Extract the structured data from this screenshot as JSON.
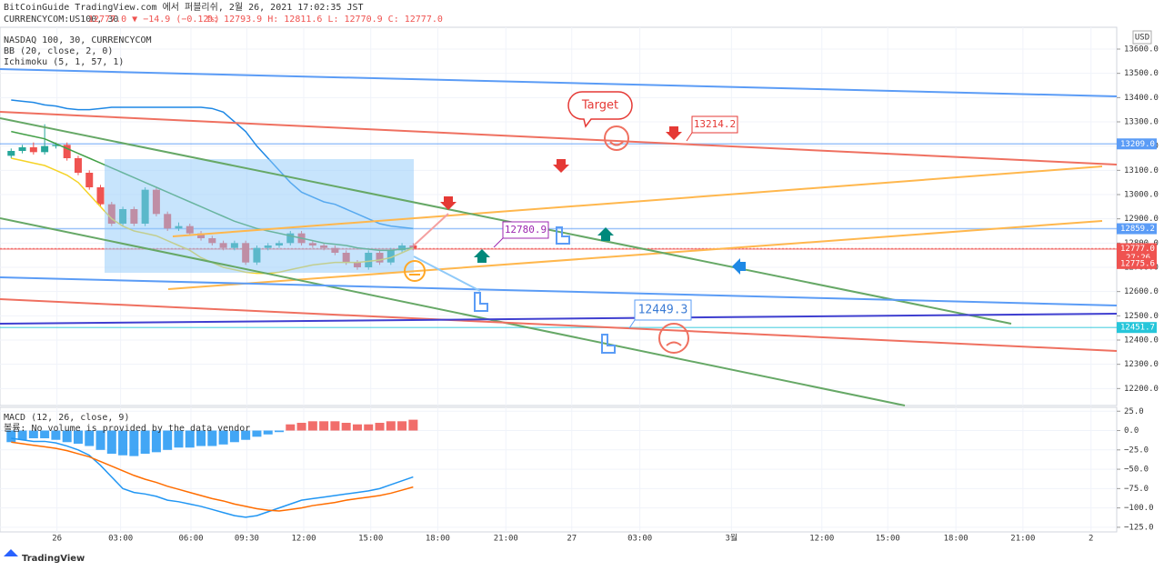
{
  "header": {
    "line1": "BitCoinGuide TradingView.com 에서 퍼블리쉬, 2월 26, 2021 17:02:35 JST",
    "symbol": "CURRENCYCOM:US100, 30",
    "change": "12777.0 ▼ −14.9 (−0.12%)",
    "ohlc": "D: 12793.9  H: 12811.6  L: 12770.9  C: 12777.0"
  },
  "footer": {
    "brand": "TradingView"
  },
  "chart_data": [
    {
      "type": "candlestick",
      "legend_lines": [
        "NASDAQ 100, 30, CURRENCYCOM",
        "BB (20, close, 2, 0)",
        "Ichimoku (5, 1, 57, 1)"
      ],
      "currency": "USD",
      "countdown": "27:26",
      "x": [
        0,
        1,
        2,
        3,
        4,
        5,
        6,
        7,
        8,
        9,
        10,
        11,
        12,
        13,
        14,
        15,
        16,
        17,
        18,
        19,
        20,
        21,
        22,
        23,
        24,
        25,
        26,
        27,
        28,
        29,
        30,
        31,
        32,
        33,
        34,
        35,
        36
      ],
      "open": [
        13160,
        13180,
        13195,
        13175,
        13200,
        13205,
        13150,
        13090,
        13030,
        12960,
        12880,
        12940,
        12880,
        13020,
        12920,
        12860,
        12870,
        12840,
        12820,
        12800,
        12780,
        12800,
        12720,
        12780,
        12790,
        12800,
        12840,
        12800,
        12790,
        12780,
        12760,
        12720,
        12700,
        12760,
        12720,
        12770,
        12790
      ],
      "close": [
        13180,
        13195,
        13175,
        13200,
        13205,
        13150,
        13090,
        13030,
        12960,
        12880,
        12940,
        12880,
        13020,
        12920,
        12860,
        12870,
        12840,
        12820,
        12800,
        12780,
        12800,
        12720,
        12780,
        12790,
        12800,
        12840,
        12800,
        12790,
        12780,
        12760,
        12720,
        12700,
        12760,
        12720,
        12770,
        12790,
        12777
      ],
      "high": [
        13190,
        13205,
        13215,
        13290,
        13215,
        13215,
        13160,
        13100,
        13040,
        12970,
        12950,
        12950,
        13030,
        13030,
        12930,
        12885,
        12880,
        12850,
        12830,
        12810,
        12810,
        12810,
        12790,
        12800,
        12810,
        12850,
        12850,
        12810,
        12800,
        12790,
        12770,
        12730,
        12770,
        12770,
        12780,
        12800,
        12800
      ],
      "low": [
        13150,
        13170,
        13165,
        13165,
        13190,
        13140,
        13080,
        13020,
        12950,
        12870,
        12870,
        12870,
        12870,
        12910,
        12850,
        12850,
        12830,
        12810,
        12790,
        12770,
        12770,
        12710,
        12710,
        12770,
        12780,
        12790,
        12790,
        12780,
        12770,
        12750,
        12710,
        12690,
        12690,
        12710,
        12710,
        12760,
        12770
      ],
      "up_color": "#26a69a",
      "down_color": "#ef5350",
      "series": [
        {
          "color": "#1e88e5",
          "values": [
            13390,
            13385,
            13380,
            13370,
            13365,
            13355,
            13350,
            13350,
            13355,
            13360,
            13360,
            13360,
            13360,
            13360,
            13360,
            13360,
            13360,
            13360,
            13355,
            13340,
            13300,
            13260,
            13200,
            13150,
            13100,
            13050,
            13010,
            12990,
            12970,
            12960,
            12940,
            12920,
            12900,
            12880,
            12870,
            12865,
            12860
          ]
        },
        {
          "color": "#43a047",
          "values": [
            13260,
            13250,
            13240,
            13230,
            13210,
            13190,
            13170,
            13150,
            13130,
            13110,
            13090,
            13070,
            13050,
            13030,
            13010,
            12990,
            12970,
            12950,
            12930,
            12910,
            12890,
            12875,
            12860,
            12850,
            12840,
            12830,
            12820,
            12810,
            12800,
            12795,
            12790,
            12780,
            12775,
            12770,
            12770,
            12775,
            12780
          ]
        },
        {
          "color": "#f5d327",
          "values": [
            13150,
            13140,
            13130,
            13120,
            13100,
            13080,
            13050,
            13000,
            12950,
            12900,
            12870,
            12850,
            12840,
            12830,
            12810,
            12790,
            12770,
            12740,
            12720,
            12700,
            12690,
            12680,
            12675,
            12675,
            12680,
            12690,
            12700,
            12710,
            12715,
            12720,
            12720,
            12720,
            12725,
            12730,
            12740,
            12760,
            12780
          ]
        }
      ],
      "xlim": [
        -1,
        99
      ],
      "ylim": [
        12130,
        13690
      ],
      "xticks": [
        {
          "value": 4.1,
          "label": "26"
        },
        {
          "value": 9.8,
          "label": "03:00"
        },
        {
          "value": 16.1,
          "label": "06:00"
        },
        {
          "value": 21.1,
          "label": "09:30"
        },
        {
          "value": 26.2,
          "label": "12:00"
        },
        {
          "value": 32.2,
          "label": "15:00"
        },
        {
          "value": 38.2,
          "label": "18:00"
        },
        {
          "value": 44.3,
          "label": "21:00"
        },
        {
          "value": 50.2,
          "label": "27"
        },
        {
          "value": 56.3,
          "label": "03:00"
        },
        {
          "value": 64.5,
          "label": "3월"
        },
        {
          "value": 72.6,
          "label": "12:00"
        },
        {
          "value": 78.5,
          "label": "15:00"
        },
        {
          "value": 84.6,
          "label": "18:00"
        },
        {
          "value": 90.6,
          "label": "21:00"
        },
        {
          "value": 96.7,
          "label": "2"
        }
      ],
      "yticks": [
        {
          "value": 13600,
          "label": "13600.0"
        },
        {
          "value": 13500,
          "label": "13500.0"
        },
        {
          "value": 13400,
          "label": "13400.0"
        },
        {
          "value": 13300,
          "label": "13300.0"
        },
        {
          "value": 13200,
          "label": "13200.0"
        },
        {
          "value": 13100,
          "label": "13100.0"
        },
        {
          "value": 13000,
          "label": "13000.0"
        },
        {
          "value": 12900,
          "label": "12900.0"
        },
        {
          "value": 12800,
          "label": "12800.0"
        },
        {
          "value": 12700,
          "label": "12700.0"
        },
        {
          "value": 12600,
          "label": "12600.0"
        },
        {
          "value": 12500,
          "label": "12500.0"
        },
        {
          "value": 12400,
          "label": "12400.0"
        },
        {
          "value": 12300,
          "label": "12300.0"
        },
        {
          "value": 12200,
          "label": "12200.0"
        }
      ],
      "price_tags": [
        {
          "value": 13209,
          "label": "13209.0",
          "color": "#5b9cf6"
        },
        {
          "value": 12859.2,
          "label": "12859.2",
          "color": "#5b9cf6"
        },
        {
          "value": 12777,
          "label": "12777.0",
          "color": "#ef5350"
        },
        {
          "value": 12775.6,
          "label": "12775.6",
          "color": "#ef5350"
        },
        {
          "value": 12451.7,
          "label": "12451.7",
          "color": "#26c6da"
        }
      ],
      "annotations": {
        "target": "Target",
        "label_a": "13214.2",
        "label_b": "12780.9",
        "label_c": "12449.3"
      },
      "grid": true
    },
    {
      "type": "macd",
      "legend_lines": [
        "MACD (12, 26, close, 9)",
        "볼륨: No volume is provided by the data vendor"
      ],
      "x": [
        0,
        1,
        2,
        3,
        4,
        5,
        6,
        7,
        8,
        9,
        10,
        11,
        12,
        13,
        14,
        15,
        16,
        17,
        18,
        19,
        20,
        21,
        22,
        23,
        24,
        25,
        26,
        27,
        28,
        29,
        30,
        31,
        32,
        33,
        34,
        35,
        36
      ],
      "histogram": [
        -15,
        -12,
        -10,
        -10,
        -12,
        -15,
        -17,
        -20,
        -25,
        -30,
        -32,
        -33,
        -30,
        -28,
        -25,
        -22,
        -22,
        -20,
        -20,
        -18,
        -15,
        -12,
        -8,
        -5,
        -2,
        8,
        10,
        12,
        12,
        12,
        10,
        8,
        8,
        10,
        12,
        12,
        14
      ],
      "pos_color": "#ef5350",
      "neg_color": "#2196f3",
      "series": [
        {
          "color": "#2196f3",
          "values": [
            -10,
            -12,
            -14,
            -14,
            -16,
            -20,
            -25,
            -32,
            -45,
            -60,
            -75,
            -80,
            -82,
            -85,
            -90,
            -92,
            -95,
            -98,
            -102,
            -106,
            -110,
            -112,
            -110,
            -105,
            -100,
            -95,
            -90,
            -88,
            -86,
            -84,
            -82,
            -80,
            -78,
            -75,
            -70,
            -65,
            -60
          ]
        },
        {
          "color": "#ff6d00",
          "values": [
            -15,
            -17,
            -19,
            -21,
            -23,
            -26,
            -30,
            -34,
            -40,
            -46,
            -52,
            -58,
            -63,
            -67,
            -72,
            -76,
            -80,
            -84,
            -88,
            -91,
            -95,
            -98,
            -101,
            -103,
            -104,
            -102,
            -100,
            -97,
            -95,
            -93,
            -90,
            -88,
            -86,
            -84,
            -81,
            -77,
            -73
          ]
        }
      ],
      "xlim": [
        -1,
        99
      ],
      "ylim": [
        -131,
        30
      ],
      "yticks": [
        {
          "value": 25,
          "label": "25.0"
        },
        {
          "value": 0,
          "label": "0.0"
        },
        {
          "value": -25,
          "label": "−25.0"
        },
        {
          "value": -50,
          "label": "−50.0"
        },
        {
          "value": -75,
          "label": "−75.0"
        },
        {
          "value": -100,
          "label": "−100.0"
        },
        {
          "value": -125,
          "label": "−125.0"
        }
      ],
      "grid": true
    }
  ]
}
